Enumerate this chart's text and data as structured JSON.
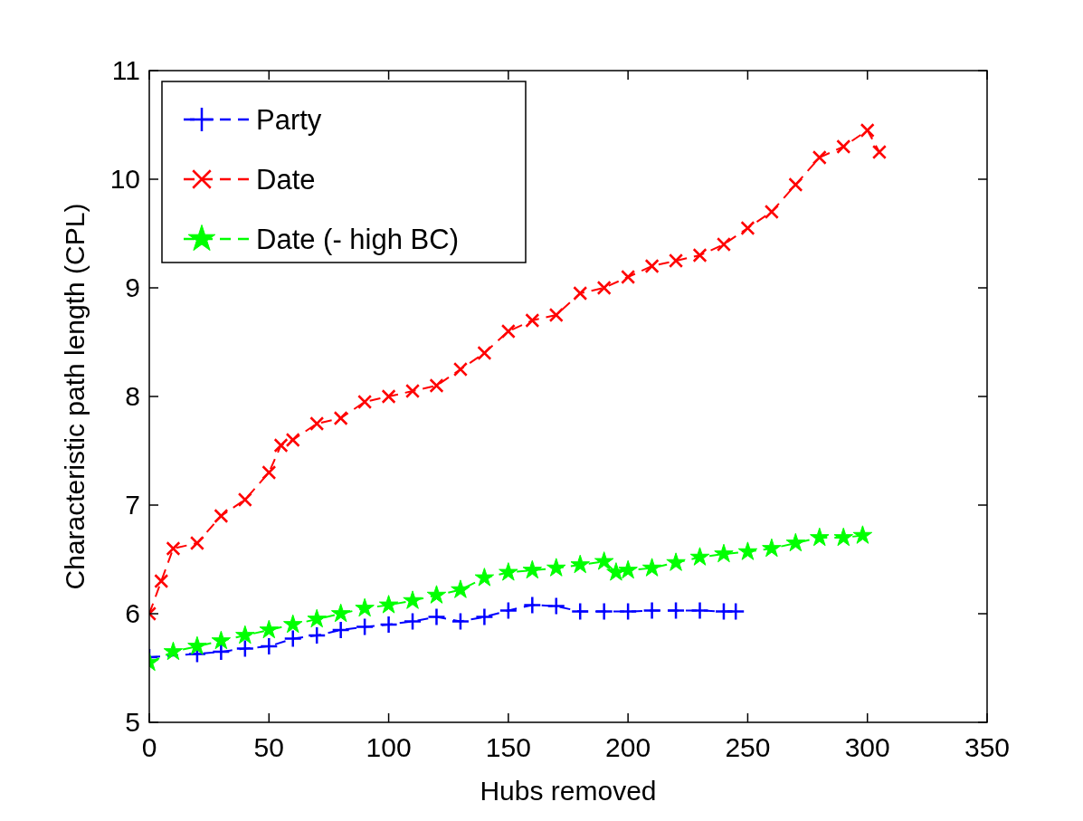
{
  "chart_data": {
    "type": "line",
    "xlabel": "Hubs removed",
    "ylabel": "Characteristic path length (CPL)",
    "xlim": [
      0,
      350
    ],
    "ylim": [
      5,
      11
    ],
    "xticks": [
      0,
      50,
      100,
      150,
      200,
      250,
      300,
      350
    ],
    "yticks": [
      5,
      6,
      7,
      8,
      9,
      10,
      11
    ],
    "grid": false,
    "legend": "top left",
    "line_style": "dashed",
    "series": [
      {
        "name": "Party",
        "color": "#0000ff",
        "marker": "cross",
        "x": [
          0,
          10,
          20,
          30,
          40,
          50,
          60,
          70,
          80,
          90,
          100,
          110,
          120,
          130,
          140,
          150,
          160,
          170,
          180,
          190,
          200,
          210,
          220,
          230,
          240,
          245
        ],
        "values": [
          5.6,
          null,
          5.63,
          5.65,
          5.68,
          5.7,
          5.77,
          5.8,
          5.85,
          5.88,
          5.9,
          5.93,
          5.97,
          5.93,
          5.97,
          6.03,
          6.08,
          6.07,
          6.02,
          6.02,
          6.02,
          6.03,
          6.03,
          6.03,
          6.02,
          6.02
        ]
      },
      {
        "name": "Date",
        "color": "#ff0000",
        "marker": "x",
        "x": [
          0,
          5,
          10,
          20,
          30,
          40,
          50,
          55,
          60,
          70,
          80,
          90,
          100,
          110,
          120,
          130,
          140,
          150,
          160,
          170,
          180,
          190,
          200,
          210,
          220,
          230,
          240,
          250,
          260,
          270,
          280,
          290,
          300,
          305
        ],
        "values": [
          6.0,
          6.3,
          6.6,
          6.65,
          6.9,
          7.05,
          7.3,
          7.55,
          7.6,
          7.75,
          7.8,
          7.95,
          8.0,
          8.05,
          8.1,
          8.25,
          8.4,
          8.6,
          8.7,
          8.75,
          8.95,
          9.0,
          9.1,
          9.2,
          9.25,
          9.3,
          9.4,
          9.55,
          9.7,
          9.95,
          10.2,
          10.3,
          10.45,
          10.25
        ]
      },
      {
        "name": "Date (- high BC)",
        "color": "#00ff00",
        "marker": "star",
        "x": [
          0,
          10,
          20,
          30,
          40,
          50,
          60,
          70,
          80,
          90,
          100,
          110,
          120,
          130,
          140,
          150,
          160,
          170,
          180,
          190,
          195,
          200,
          210,
          220,
          230,
          240,
          250,
          260,
          270,
          280,
          290,
          298
        ],
        "values": [
          5.55,
          5.65,
          5.7,
          5.75,
          5.8,
          5.85,
          5.9,
          5.95,
          6.0,
          6.05,
          6.08,
          6.12,
          6.17,
          6.22,
          6.33,
          6.38,
          6.4,
          6.42,
          6.45,
          6.48,
          6.38,
          6.4,
          6.42,
          6.47,
          6.52,
          6.55,
          6.57,
          6.6,
          6.65,
          6.7,
          6.7,
          6.72
        ]
      }
    ]
  }
}
